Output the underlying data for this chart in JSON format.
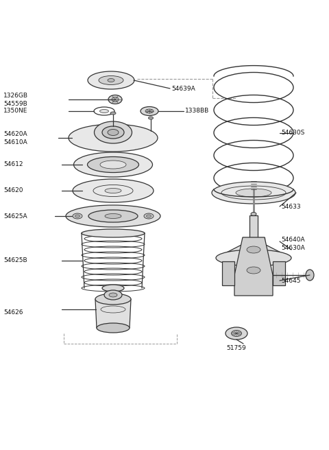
{
  "bg_color": "#ffffff",
  "line_color": "#333333",
  "text_color": "#111111",
  "figsize": [
    4.8,
    6.56
  ],
  "dpi": 100,
  "xlim": [
    0,
    480
  ],
  "ylim": [
    0,
    656
  ]
}
